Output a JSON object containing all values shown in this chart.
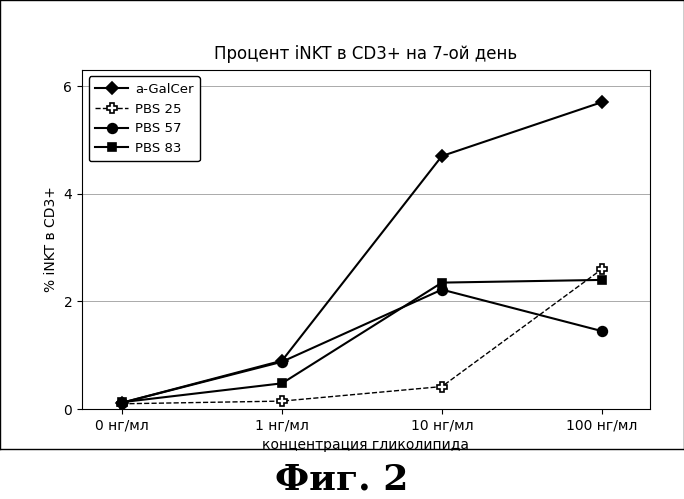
{
  "title": "Процент iNKT в CD3+ на 7-ой день",
  "xlabel": "концентрация гликолипида",
  "ylabel": "% iNKT в CD3+",
  "fig_label": "Фиг. 2",
  "x_positions": [
    0,
    1,
    2,
    3
  ],
  "x_tick_labels": [
    "0 нг/мл",
    "1 нг/мл",
    "10 нг/мл",
    "100 нг/мл"
  ],
  "ylim": [
    0,
    6.3
  ],
  "yticks": [
    0,
    2,
    4,
    6
  ],
  "series": [
    {
      "label": "a-GalCer",
      "values": [
        0.12,
        0.9,
        4.7,
        5.7
      ],
      "color": "#000000",
      "marker": "D",
      "markersize": 6,
      "linestyle": "-",
      "linewidth": 1.5,
      "markerfacecolor": "#000000",
      "zorder": 4
    },
    {
      "label": "PBS 25",
      "values": [
        0.1,
        0.15,
        0.42,
        2.6
      ],
      "color": "#000000",
      "marker": "P",
      "markersize": 7,
      "linestyle": "--",
      "linewidth": 1.0,
      "markerfacecolor": "#ffffff",
      "zorder": 3
    },
    {
      "label": "PBS 57",
      "values": [
        0.12,
        0.88,
        2.22,
        1.45
      ],
      "color": "#000000",
      "marker": "o",
      "markersize": 7,
      "linestyle": "-",
      "linewidth": 1.5,
      "markerfacecolor": "#000000",
      "zorder": 5
    },
    {
      "label": "PBS 83",
      "values": [
        0.13,
        0.48,
        2.35,
        2.4
      ],
      "color": "#000000",
      "marker": "s",
      "markersize": 6,
      "linestyle": "-",
      "linewidth": 1.5,
      "markerfacecolor": "#000000",
      "zorder": 4
    }
  ],
  "background_color": "#ffffff",
  "grid_color": "#aaaaaa",
  "title_fontsize": 12,
  "label_fontsize": 10,
  "tick_fontsize": 10,
  "legend_fontsize": 9.5,
  "fig_label_fontsize": 26
}
